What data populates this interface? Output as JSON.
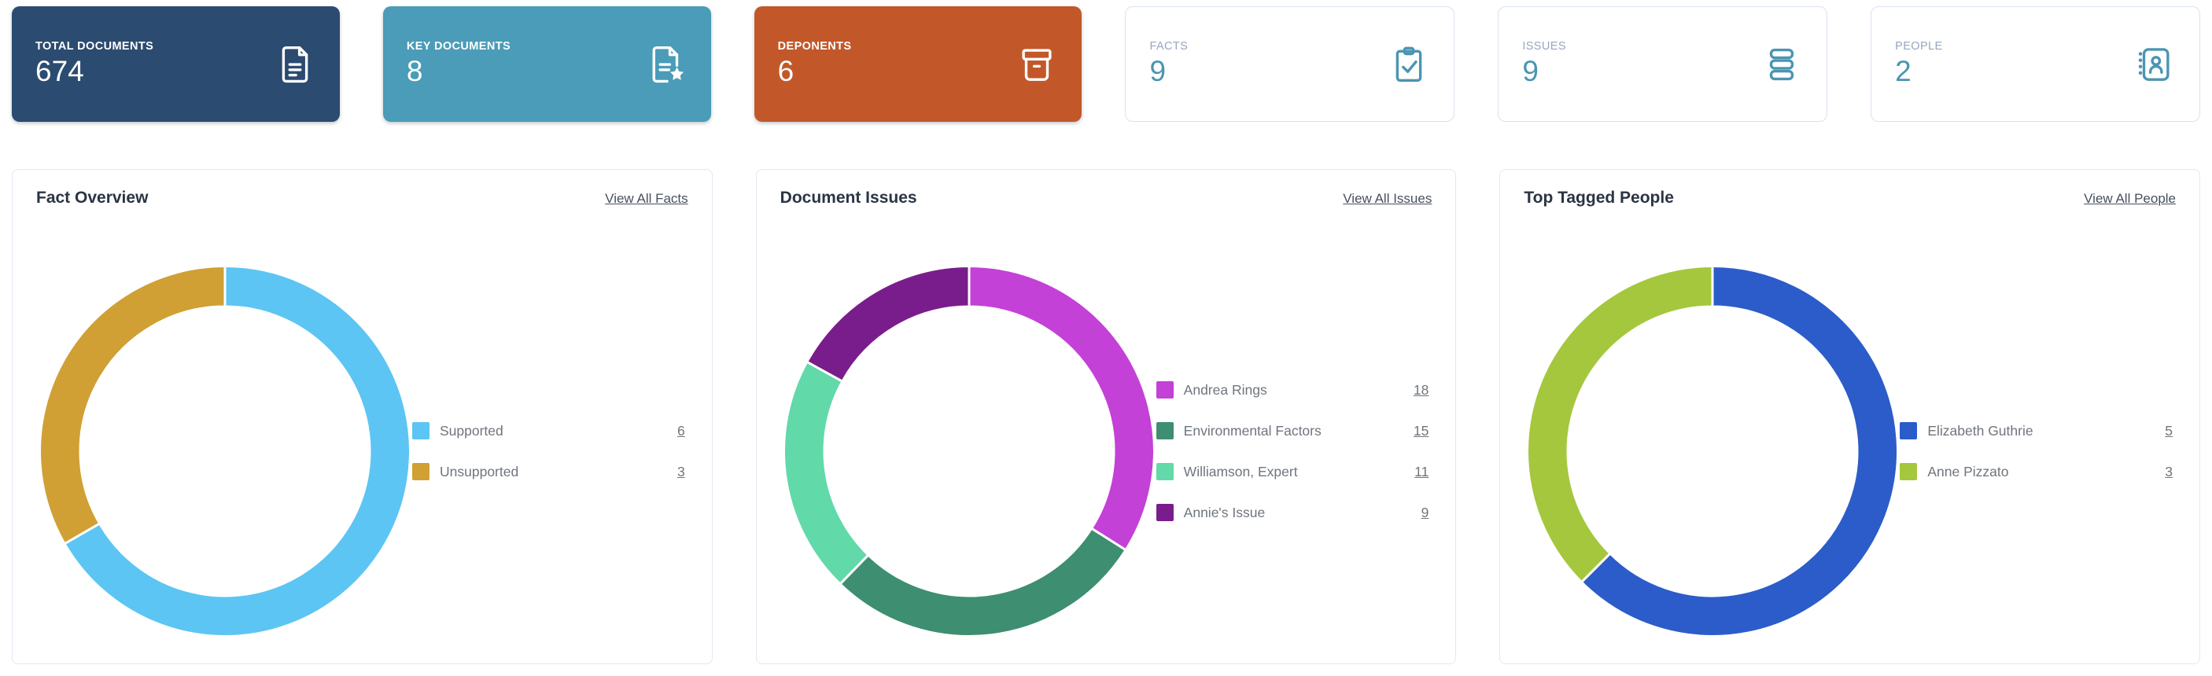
{
  "stat_cards": [
    {
      "label": "TOTAL DOCUMENTS",
      "value": "674",
      "icon": "document-icon",
      "variant": "solid",
      "bg": "#2c4b70"
    },
    {
      "label": "KEY DOCUMENTS",
      "value": "8",
      "icon": "document-star-icon",
      "variant": "solid",
      "bg": "#4a9cb8"
    },
    {
      "label": "DEPONENTS",
      "value": "6",
      "icon": "archive-box-icon",
      "variant": "solid",
      "bg": "#c2582a"
    },
    {
      "label": "FACTS",
      "value": "9",
      "icon": "clipboard-check-icon",
      "variant": "outline",
      "accent": "#4b95b2"
    },
    {
      "label": "ISSUES",
      "value": "9",
      "icon": "stack-icon",
      "variant": "outline",
      "accent": "#4b95b2"
    },
    {
      "label": "PEOPLE",
      "value": "2",
      "icon": "contact-book-icon",
      "variant": "outline",
      "accent": "#4b95b2"
    }
  ],
  "chart_data": [
    {
      "type": "pie",
      "donut": true,
      "title": "Fact Overview",
      "link_label": "View All Facts",
      "categories": [
        "Supported",
        "Unsupported"
      ],
      "values": [
        6,
        3
      ],
      "colors": [
        "#5cc5f3",
        "#d0a035"
      ],
      "legend_position": "right",
      "start_angle_deg": 0,
      "direction": "clockwise"
    },
    {
      "type": "pie",
      "donut": true,
      "title": "Document Issues",
      "link_label": "View All Issues",
      "categories": [
        "Andrea Rings",
        "Environmental Factors",
        "Williamson, Expert",
        "Annie's Issue"
      ],
      "values": [
        18,
        15,
        11,
        9
      ],
      "colors": [
        "#c341d6",
        "#3e8e71",
        "#61d9a9",
        "#7a1d8c"
      ],
      "legend_position": "right",
      "start_angle_deg": 0,
      "direction": "clockwise"
    },
    {
      "type": "pie",
      "donut": true,
      "title": "Top Tagged People",
      "link_label": "View All People",
      "categories": [
        "Elizabeth Guthrie",
        "Anne Pizzato"
      ],
      "values": [
        5,
        3
      ],
      "colors": [
        "#2b5cc9",
        "#a5c73d"
      ],
      "legend_position": "right",
      "start_angle_deg": 0,
      "direction": "clockwise"
    }
  ]
}
